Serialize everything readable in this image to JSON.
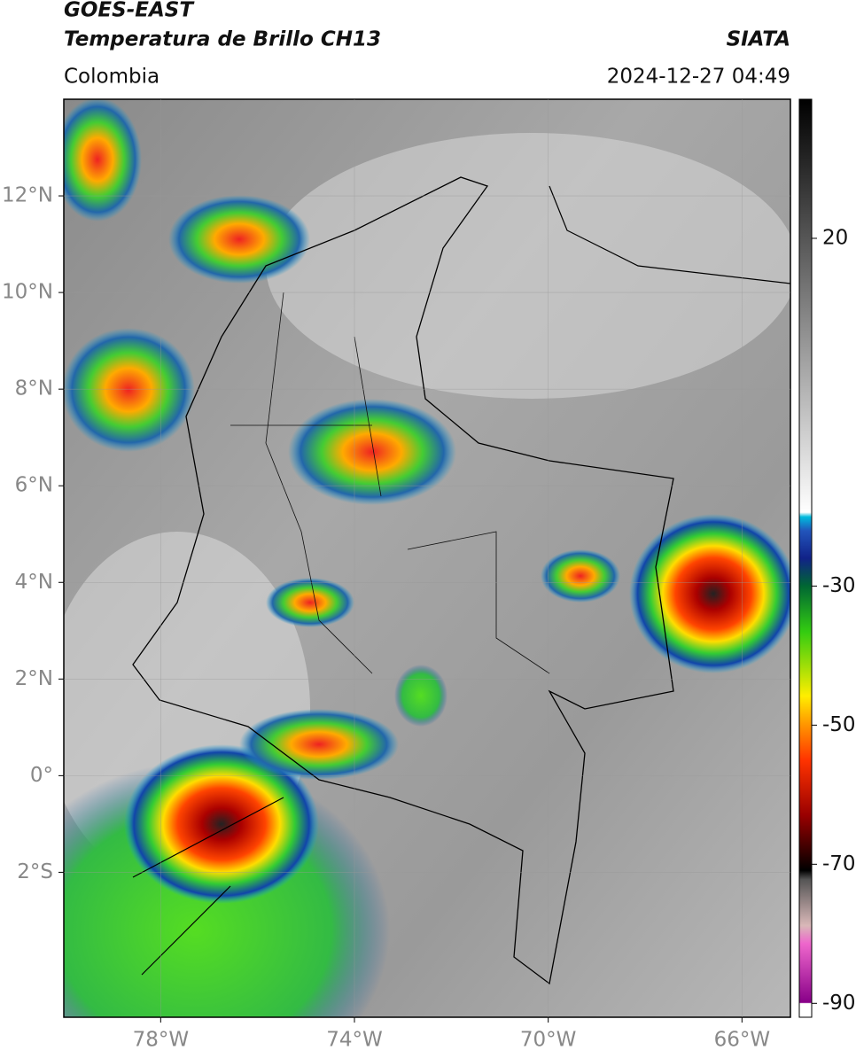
{
  "header": {
    "satellite": "GOES-EAST",
    "product": "Temperatura de Brillo CH13",
    "region": "Colombia",
    "source": "SIATA",
    "datetime": "2024-12-27 04:49"
  },
  "map": {
    "xlim": [
      -80,
      -65
    ],
    "ylim": [
      -5,
      14
    ],
    "xticks": [
      {
        "value": -78,
        "label": "78°W"
      },
      {
        "value": -74,
        "label": "74°W"
      },
      {
        "value": -70,
        "label": "70°W"
      },
      {
        "value": -66,
        "label": "66°W"
      }
    ],
    "yticks": [
      {
        "value": 12,
        "label": "12°N"
      },
      {
        "value": 10,
        "label": "10°N"
      },
      {
        "value": 8,
        "label": "8°N"
      },
      {
        "value": 6,
        "label": "6°N"
      },
      {
        "value": 4,
        "label": "4°N"
      },
      {
        "value": 2,
        "label": "2°N"
      },
      {
        "value": 0,
        "label": "0°"
      },
      {
        "value": -2,
        "label": "2°S"
      }
    ]
  },
  "colorbar": {
    "lim": [
      -92,
      40
    ],
    "ticks": [
      20,
      -30,
      -50,
      -70,
      -90
    ]
  }
}
